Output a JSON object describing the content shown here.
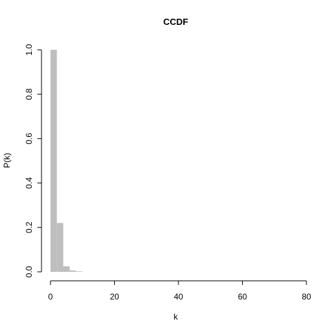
{
  "chart_data": {
    "type": "bar",
    "title": "CCDF",
    "xlabel": "k",
    "ylabel": "P(k)",
    "xlim": [
      0,
      80
    ],
    "ylim": [
      0,
      1.0
    ],
    "x_ticks": [
      "0",
      "20",
      "40",
      "60",
      "80"
    ],
    "y_ticks": [
      "0.0",
      "0.2",
      "0.4",
      "0.6",
      "0.8",
      "1.0"
    ],
    "x": [
      1,
      3,
      5,
      7,
      9
    ],
    "values": [
      1.0,
      0.22,
      0.025,
      0.006,
      0.002
    ],
    "bar_color": "#bebebe",
    "grid": false
  }
}
